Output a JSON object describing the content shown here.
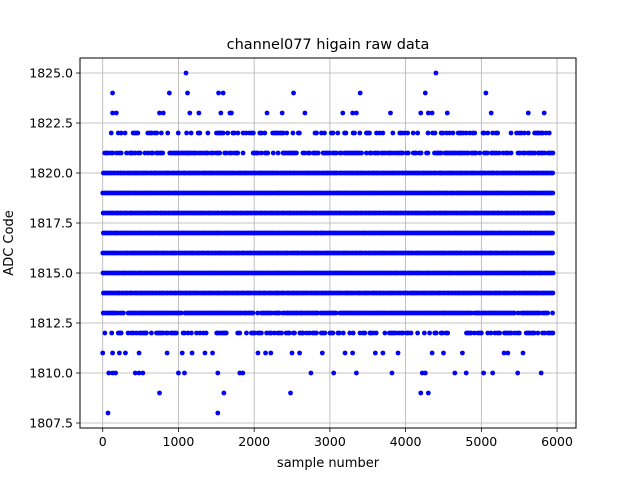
{
  "chart_data": {
    "type": "scatter",
    "title": "channel077 higain raw data",
    "xlabel": "sample number",
    "ylabel": "ADC Code",
    "xlim": [
      -300,
      6250
    ],
    "ylim": [
      1807.25,
      1825.75
    ],
    "xticks": [
      0,
      1000,
      2000,
      3000,
      4000,
      5000,
      6000
    ],
    "xtick_labels": [
      "0",
      "1000",
      "2000",
      "3000",
      "4000",
      "5000",
      "6000"
    ],
    "yticks": [
      1807.5,
      1810.0,
      1812.5,
      1815.0,
      1817.5,
      1820.0,
      1822.5,
      1825.0
    ],
    "ytick_labels": [
      "1807.5",
      "1810.0",
      "1812.5",
      "1815.0",
      "1817.5",
      "1820.0",
      "1822.5",
      "1825.0"
    ],
    "grid": true,
    "color": "#0000ff",
    "x_range": [
      0,
      5940
    ],
    "dense_levels": [
      1812,
      1813,
      1814,
      1815,
      1816,
      1817,
      1818,
      1819,
      1820,
      1821,
      1822
    ],
    "sparse_points": [
      {
        "x": 70,
        "y": 1808
      },
      {
        "x": 1520,
        "y": 1808
      },
      {
        "x": 750,
        "y": 1809
      },
      {
        "x": 1600,
        "y": 1809
      },
      {
        "x": 2480,
        "y": 1809
      },
      {
        "x": 4200,
        "y": 1809
      },
      {
        "x": 4300,
        "y": 1809
      },
      {
        "x": 80,
        "y": 1810
      },
      {
        "x": 130,
        "y": 1810
      },
      {
        "x": 170,
        "y": 1810
      },
      {
        "x": 430,
        "y": 1810
      },
      {
        "x": 480,
        "y": 1810
      },
      {
        "x": 530,
        "y": 1810
      },
      {
        "x": 1000,
        "y": 1810
      },
      {
        "x": 1080,
        "y": 1810
      },
      {
        "x": 1520,
        "y": 1810
      },
      {
        "x": 1810,
        "y": 1810
      },
      {
        "x": 1850,
        "y": 1810
      },
      {
        "x": 2750,
        "y": 1810
      },
      {
        "x": 3050,
        "y": 1810
      },
      {
        "x": 3350,
        "y": 1810
      },
      {
        "x": 3820,
        "y": 1810
      },
      {
        "x": 4220,
        "y": 1810
      },
      {
        "x": 4260,
        "y": 1810
      },
      {
        "x": 4650,
        "y": 1810
      },
      {
        "x": 4800,
        "y": 1810
      },
      {
        "x": 5030,
        "y": 1810
      },
      {
        "x": 5150,
        "y": 1810
      },
      {
        "x": 5480,
        "y": 1810
      },
      {
        "x": 5790,
        "y": 1810
      },
      {
        "x": 0,
        "y": 1811
      },
      {
        "x": 130,
        "y": 1811
      },
      {
        "x": 220,
        "y": 1811
      },
      {
        "x": 300,
        "y": 1811
      },
      {
        "x": 480,
        "y": 1811
      },
      {
        "x": 850,
        "y": 1811
      },
      {
        "x": 1050,
        "y": 1811
      },
      {
        "x": 1180,
        "y": 1811
      },
      {
        "x": 1350,
        "y": 1811
      },
      {
        "x": 1450,
        "y": 1811
      },
      {
        "x": 2050,
        "y": 1811
      },
      {
        "x": 2150,
        "y": 1811
      },
      {
        "x": 2220,
        "y": 1811
      },
      {
        "x": 2500,
        "y": 1811
      },
      {
        "x": 2600,
        "y": 1811
      },
      {
        "x": 2900,
        "y": 1811
      },
      {
        "x": 3200,
        "y": 1811
      },
      {
        "x": 3300,
        "y": 1811
      },
      {
        "x": 3600,
        "y": 1811
      },
      {
        "x": 3700,
        "y": 1811
      },
      {
        "x": 3900,
        "y": 1811
      },
      {
        "x": 4350,
        "y": 1811
      },
      {
        "x": 4500,
        "y": 1811
      },
      {
        "x": 4750,
        "y": 1811
      },
      {
        "x": 5300,
        "y": 1811
      },
      {
        "x": 5350,
        "y": 1811
      },
      {
        "x": 5550,
        "y": 1811
      },
      {
        "x": 130,
        "y": 1823
      },
      {
        "x": 180,
        "y": 1823
      },
      {
        "x": 750,
        "y": 1823
      },
      {
        "x": 800,
        "y": 1823
      },
      {
        "x": 1150,
        "y": 1823
      },
      {
        "x": 1270,
        "y": 1823
      },
      {
        "x": 1560,
        "y": 1823
      },
      {
        "x": 1680,
        "y": 1823
      },
      {
        "x": 1700,
        "y": 1823
      },
      {
        "x": 2170,
        "y": 1823
      },
      {
        "x": 2370,
        "y": 1823
      },
      {
        "x": 2670,
        "y": 1823
      },
      {
        "x": 3170,
        "y": 1823
      },
      {
        "x": 3300,
        "y": 1823
      },
      {
        "x": 3350,
        "y": 1823
      },
      {
        "x": 3800,
        "y": 1823
      },
      {
        "x": 4200,
        "y": 1823
      },
      {
        "x": 4300,
        "y": 1823
      },
      {
        "x": 4350,
        "y": 1823
      },
      {
        "x": 4550,
        "y": 1823
      },
      {
        "x": 5130,
        "y": 1823
      },
      {
        "x": 5620,
        "y": 1823
      },
      {
        "x": 5830,
        "y": 1823
      },
      {
        "x": 130,
        "y": 1824
      },
      {
        "x": 880,
        "y": 1824
      },
      {
        "x": 1120,
        "y": 1824
      },
      {
        "x": 1530,
        "y": 1824
      },
      {
        "x": 1590,
        "y": 1824
      },
      {
        "x": 2520,
        "y": 1824
      },
      {
        "x": 3400,
        "y": 1824
      },
      {
        "x": 4260,
        "y": 1824
      },
      {
        "x": 5060,
        "y": 1824
      },
      {
        "x": 1100,
        "y": 1825
      },
      {
        "x": 4400,
        "y": 1825
      }
    ]
  }
}
